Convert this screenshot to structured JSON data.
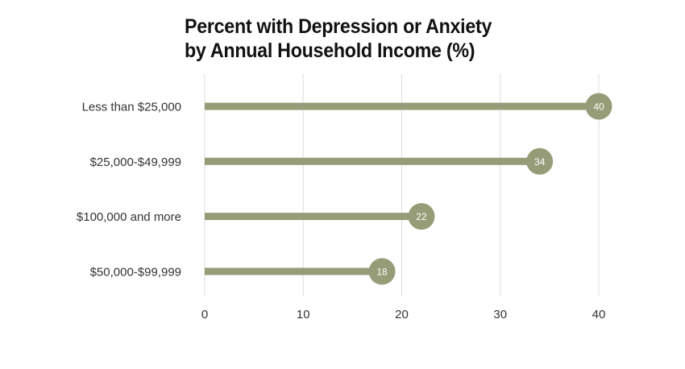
{
  "chart_data": {
    "type": "bar",
    "subtype": "lollipop",
    "title_lines": [
      "Percent with Depression or Anxiety",
      "by Annual Household Income (%)"
    ],
    "categories": [
      "Less than $25,000",
      "$25,000-$49,999",
      "$100,000 and more",
      "$50,000-$99,999"
    ],
    "values": [
      40,
      34,
      22,
      18
    ],
    "data_labels": [
      "40",
      "34",
      "22",
      "18"
    ],
    "xlim": [
      0,
      40
    ],
    "x_ticks": [
      0,
      10,
      20,
      30,
      40
    ],
    "x_tick_labels": [
      "0",
      "10",
      "20",
      "30",
      "40"
    ],
    "orientation": "horizontal",
    "grid": "vertical",
    "color": "#979c78",
    "grid_color": "#dddddd"
  }
}
